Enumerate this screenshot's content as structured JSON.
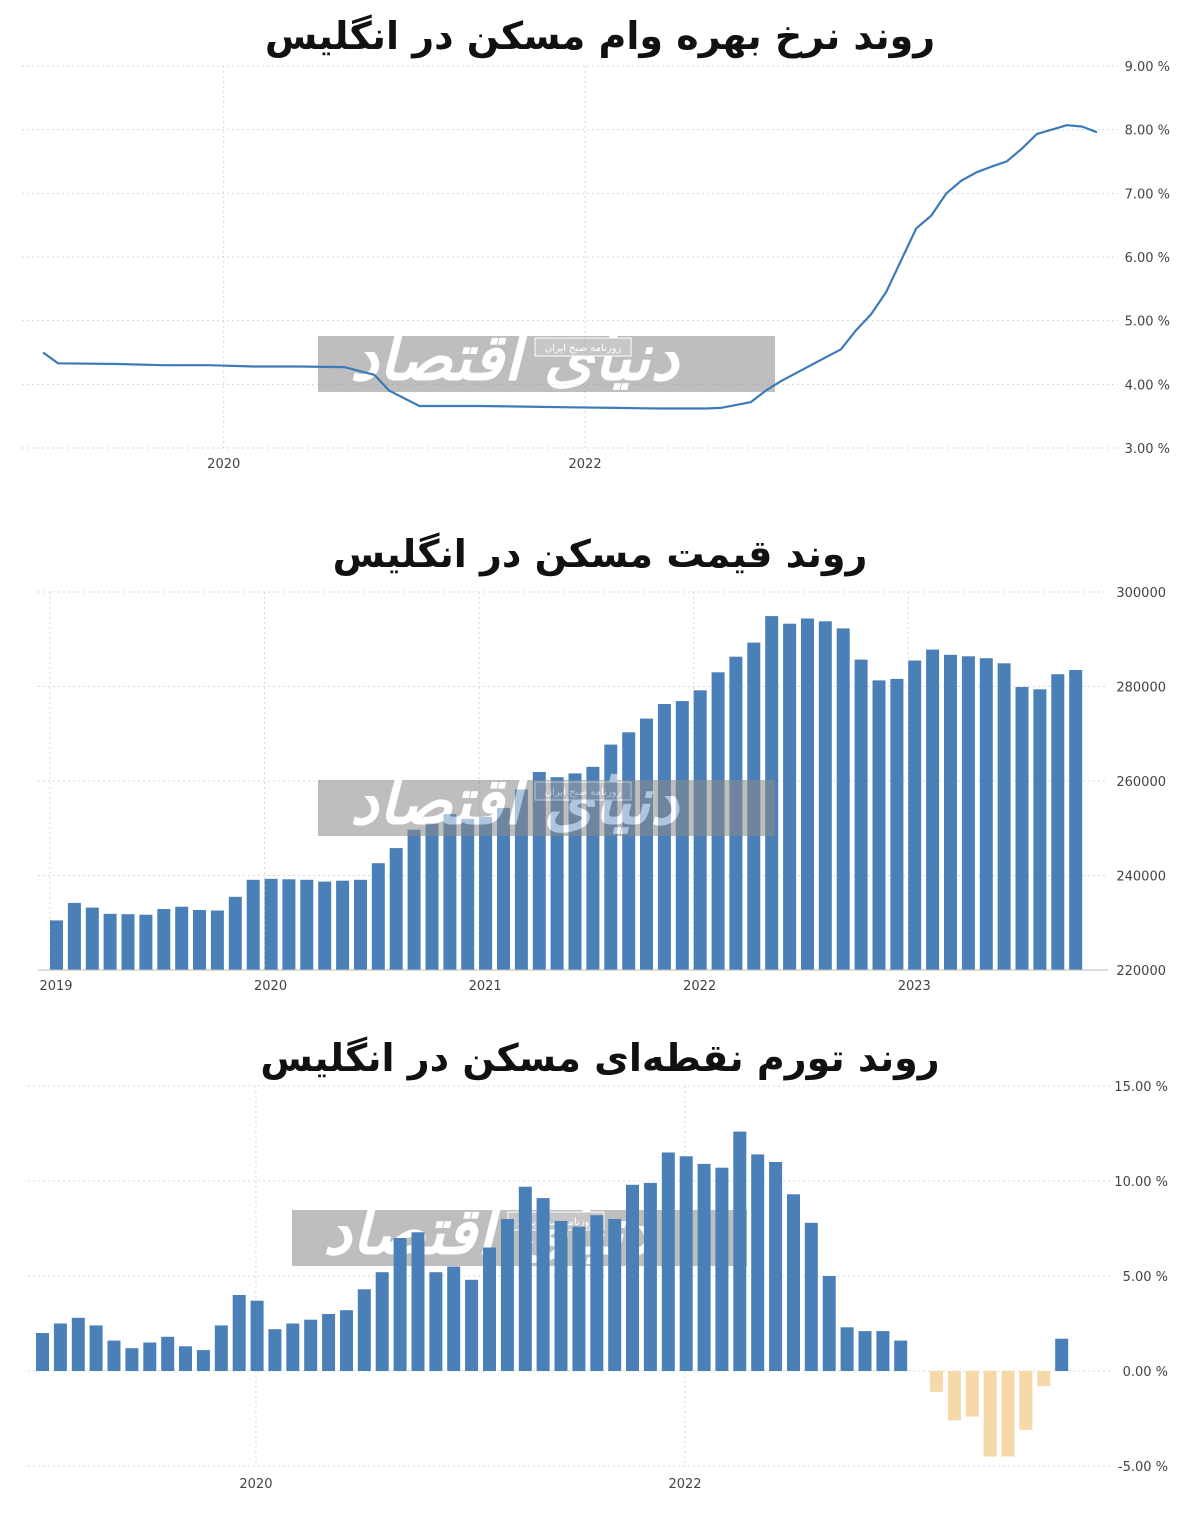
{
  "charts": [
    {
      "title": "روند نرخ بهره وام مسکن در انگلیس",
      "y_unit_suffix": " %",
      "chart_data": {
        "type": "line",
        "title": "روند نرخ بهره وام مسکن در انگلیس",
        "xlabel": "",
        "ylabel": "",
        "ylim": [
          3,
          9
        ],
        "y_ticks": [
          "9.00 %",
          "8.00 %",
          "7.00 %",
          "6.00 %",
          "5.00 %",
          "4.00 %",
          "3.00 %"
        ],
        "x_ticks": [
          "2020",
          "2022"
        ],
        "grid": true,
        "series": [
          {
            "color": "#3d7ab8",
            "points": [
              [
                "2019-01",
                4.5
              ],
              [
                "2019-02",
                4.33
              ],
              [
                "2019-06",
                4.32
              ],
              [
                "2019-09",
                4.3
              ],
              [
                "2019-12",
                4.3
              ],
              [
                "2020-03",
                4.28
              ],
              [
                "2020-06",
                4.28
              ],
              [
                "2020-09",
                4.27
              ],
              [
                "2020-11",
                4.15
              ],
              [
                "2020-12",
                3.9
              ],
              [
                "2021-02",
                3.66
              ],
              [
                "2021-06",
                3.66
              ],
              [
                "2021-09",
                3.65
              ],
              [
                "2021-12",
                3.64
              ],
              [
                "2022-03",
                3.63
              ],
              [
                "2022-06",
                3.62
              ],
              [
                "2022-09",
                3.62
              ],
              [
                "2022-10",
                3.63
              ],
              [
                "2022-12",
                3.72
              ],
              [
                "2023-01",
                3.9
              ],
              [
                "2023-02",
                4.05
              ],
              [
                "2023-04",
                4.3
              ],
              [
                "2023-06",
                4.55
              ],
              [
                "2023-07",
                4.85
              ],
              [
                "2023-08",
                5.1
              ],
              [
                "2023-09",
                5.45
              ],
              [
                "2023-10",
                5.95
              ],
              [
                "2023-11",
                6.45
              ],
              [
                "2023-12",
                6.65
              ],
              [
                "2024-01",
                7.0
              ],
              [
                "2024-02",
                7.2
              ],
              [
                "2024-03",
                7.33
              ],
              [
                "2024-04",
                7.42
              ],
              [
                "2024-05",
                7.5
              ],
              [
                "2024-06",
                7.7
              ],
              [
                "2024-07",
                7.93
              ],
              [
                "2024-09",
                8.07
              ],
              [
                "2024-10",
                8.05
              ],
              [
                "2024-11",
                7.96
              ]
            ]
          }
        ]
      }
    },
    {
      "title": "روند قیمت مسکن در انگلیس",
      "chart_data": {
        "type": "bar",
        "title": "روند قیمت مسکن در انگلیس",
        "xlabel": "",
        "ylabel": "",
        "ylim": [
          220000,
          300000
        ],
        "y_ticks": [
          "300000",
          "280000",
          "260000",
          "240000",
          "220000"
        ],
        "x_ticks": [
          "2019",
          "2020",
          "2021",
          "2022",
          "2023"
        ],
        "grid": true,
        "color": "#4a80b7",
        "values": [
          230500,
          234200,
          233200,
          231900,
          231800,
          231700,
          232900,
          233400,
          232700,
          232600,
          235500,
          239100,
          239300,
          239200,
          239100,
          238700,
          238900,
          239100,
          242600,
          245800,
          249700,
          251000,
          253000,
          252000,
          252400,
          254300,
          258200,
          261900,
          260800,
          261600,
          263000,
          267700,
          270300,
          273200,
          276300,
          276900,
          279200,
          283000,
          286300,
          289300,
          294900,
          293300,
          294400,
          293800,
          292300,
          285700,
          281300,
          281600,
          285500,
          287800,
          286700,
          286400,
          286000,
          284900,
          279900,
          279400,
          282600,
          283500
        ]
      }
    },
    {
      "title": "روند تورم نقطه‌ای مسکن در انگلیس",
      "chart_data": {
        "type": "bar",
        "title": "روند تورم نقطه‌ای مسکن در انگلیس",
        "xlabel": "",
        "ylabel": "",
        "ylim": [
          -5,
          15
        ],
        "y_ticks": [
          "15.00 %",
          "10.00 %",
          "5.00 %",
          "0.00 %",
          "-5.00 %"
        ],
        "x_ticks": [
          "2020",
          "2022"
        ],
        "grid": true,
        "positive_color": "#4a80b7",
        "negative_color": "#f5d9a8",
        "values": [
          2.0,
          2.5,
          2.8,
          2.4,
          1.6,
          1.2,
          1.5,
          1.8,
          1.3,
          1.1,
          2.4,
          4.0,
          3.7,
          2.2,
          2.5,
          2.7,
          3.0,
          3.2,
          4.3,
          5.2,
          7.0,
          7.3,
          5.2,
          5.5,
          4.8,
          6.5,
          8.0,
          9.7,
          9.1,
          7.9,
          7.6,
          8.2,
          8.0,
          9.8,
          9.9,
          11.5,
          11.3,
          10.9,
          10.7,
          12.6,
          11.4,
          11.0,
          9.3,
          7.8,
          5.0,
          2.3,
          2.1,
          2.1,
          1.6,
          null,
          -1.1,
          -2.6,
          -2.4,
          -4.5,
          -4.5,
          -3.1,
          -0.8,
          1.7
        ]
      }
    }
  ],
  "watermark": {
    "text": "دنیای اقتصاد",
    "subtext": "روزنامه صبح ایران"
  }
}
